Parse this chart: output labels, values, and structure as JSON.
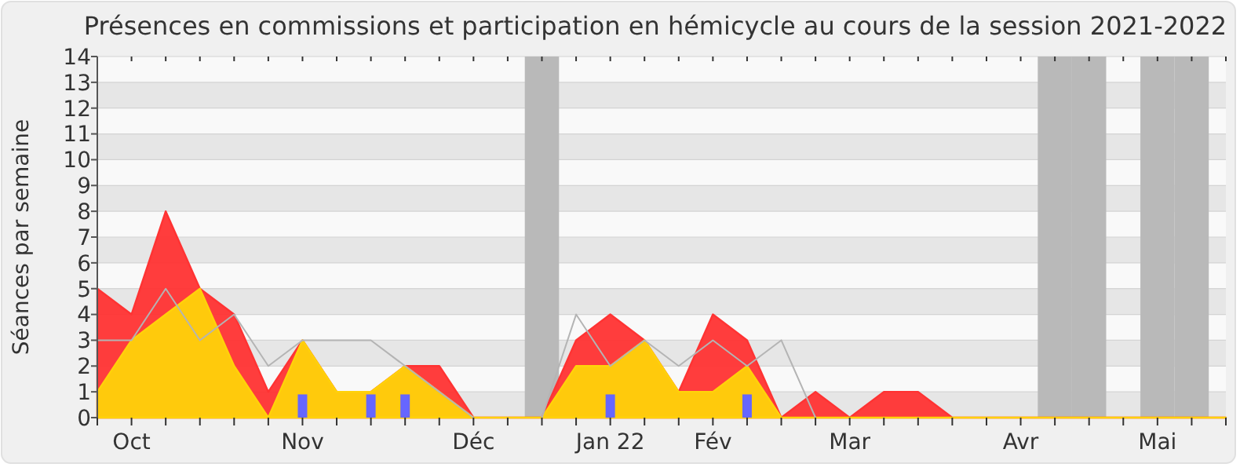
{
  "chart_data": {
    "type": "area",
    "title": "Présences en commissions et participation en hémicycle au cours de la session 2021-2022",
    "ylabel": "Séances par semaine",
    "categories": [
      null,
      "Oct",
      null,
      null,
      null,
      null,
      "Nov",
      null,
      null,
      null,
      null,
      "Déc",
      null,
      null,
      null,
      "Jan 22",
      null,
      null,
      "Fév",
      null,
      null,
      null,
      "Mar",
      null,
      null,
      null,
      null,
      "Avr",
      null,
      null,
      null,
      "Mai",
      null,
      null
    ],
    "ylim": [
      0,
      14
    ],
    "yticks": [
      0,
      1,
      2,
      3,
      4,
      5,
      6,
      7,
      8,
      9,
      10,
      11,
      12,
      13,
      14
    ],
    "grid": "y",
    "series": [
      {
        "type": "bar",
        "color": "#b9b9b9",
        "values": [
          null,
          null,
          null,
          null,
          null,
          null,
          null,
          null,
          null,
          null,
          null,
          null,
          null,
          14,
          null,
          null,
          null,
          null,
          null,
          null,
          null,
          null,
          null,
          null,
          null,
          null,
          null,
          null,
          14,
          14,
          null,
          14,
          14,
          null
        ]
      },
      {
        "color": "#ff3333",
        "values": [
          5,
          4,
          8,
          5,
          4,
          1,
          3,
          1,
          1,
          2,
          2,
          0,
          0,
          0,
          3,
          4,
          3,
          1,
          4,
          3,
          0,
          1,
          0,
          1,
          1,
          0,
          0,
          0,
          0,
          0,
          0,
          0,
          0,
          0
        ]
      },
      {
        "color": "#ffd20a",
        "values": [
          1,
          3,
          4,
          5,
          2,
          0,
          3,
          1,
          1,
          2,
          1,
          0,
          0,
          0,
          2,
          2,
          3,
          1,
          1,
          2,
          0,
          0,
          0,
          0,
          0,
          0,
          0,
          0,
          0,
          0,
          0,
          0,
          0,
          0
        ]
      },
      {
        "type": "line",
        "color": "#b4b4b4",
        "values": [
          3,
          3,
          5,
          3,
          4,
          2,
          3,
          3,
          3,
          2,
          1,
          0,
          null,
          0,
          4,
          2,
          3,
          2,
          3,
          2,
          3,
          0,
          null,
          null,
          null,
          null,
          null,
          null,
          null,
          null,
          null,
          null,
          null,
          null
        ]
      },
      {
        "type": "bar",
        "color": "#6666ff",
        "values": [
          null,
          null,
          null,
          null,
          null,
          null,
          0.9,
          null,
          0.9,
          0.9,
          null,
          null,
          null,
          null,
          null,
          0.9,
          null,
          null,
          null,
          0.9,
          null,
          null,
          null,
          null,
          null,
          null,
          null,
          null,
          null,
          null,
          null,
          null,
          null,
          null
        ]
      }
    ]
  }
}
